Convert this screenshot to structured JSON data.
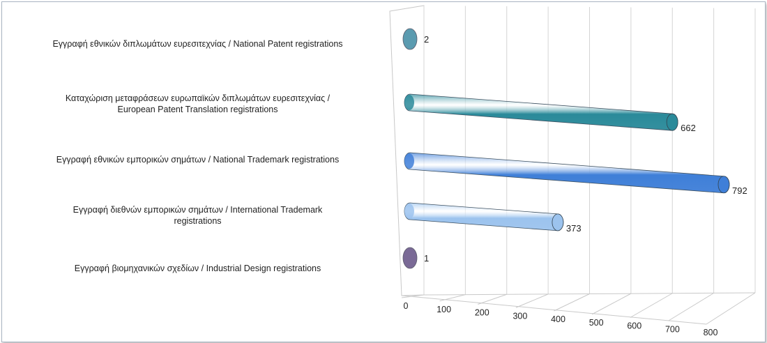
{
  "chart_data": {
    "type": "bar",
    "orientation": "horizontal",
    "style": "3d-cylinder",
    "categories": [
      "Εγγραφή  εθνικών διπλωμάτων ευρεσιτεχνίας / National Patent registrations",
      "Καταχώριση μεταφράσεων ευρωπαϊκών διπλωμάτων ευρεσιτεχνίας /\nEuropean Patent Translation registrations",
      "Εγγραφή  εθνικών εμπορικών σημάτων / National Trademark registrations",
      "Εγγραφή  διεθνών εμπορικών σημάτων / International Trademark\nregistrations",
      "Εγγραφή  βιομηχανικών σχεδίων / Industrial Design registrations"
    ],
    "values": [
      2,
      662,
      792,
      373,
      1
    ],
    "data_labels": [
      "2",
      "662",
      "792",
      "373",
      "1"
    ],
    "colors": [
      "#5b9bb0",
      "#2a8a9a",
      "#3f7fd8",
      "#9cc3ee",
      "#7a6a96"
    ],
    "xlim": [
      0,
      800
    ],
    "ticks": [
      "0",
      "100",
      "200",
      "300",
      "400",
      "500",
      "600",
      "700",
      "800"
    ],
    "grid": true,
    "legend": "none"
  }
}
